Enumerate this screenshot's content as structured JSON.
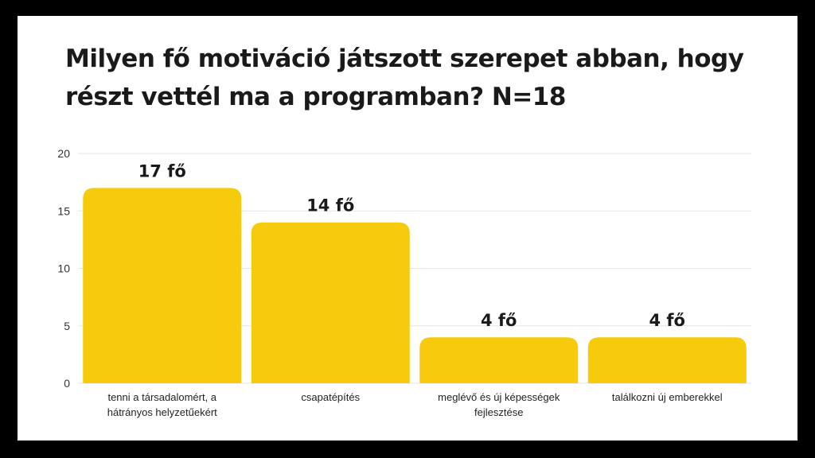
{
  "chart_data": {
    "type": "bar",
    "title": "Milyen fő motiváció játszott szerepet abban, hogy részt vettél ma a programban? N=18",
    "title_lines": [
      "Milyen fő motiváció játszott szerepet abban, hogy",
      "részt vettél ma a programban? N=18"
    ],
    "categories": [
      [
        "tenni a társadalomért, a",
        "hátrányos helyzetűekért"
      ],
      [
        "csapatépítés"
      ],
      [
        "meglévő és új képességek",
        "fejlesztése"
      ],
      [
        "találkozni új emberekkel"
      ]
    ],
    "values": [
      17,
      14,
      4,
      4
    ],
    "data_labels": [
      "17 fő",
      "14 fő",
      "4 fő",
      "4 fő"
    ],
    "ylim": [
      0,
      20
    ],
    "yticks": [
      0,
      5,
      10,
      15,
      20
    ],
    "grid": true,
    "bar_color": "#F5CB0C",
    "grid_color": "#E6E6E6",
    "background": "#FFFFFF",
    "frame_color": "#000000"
  }
}
